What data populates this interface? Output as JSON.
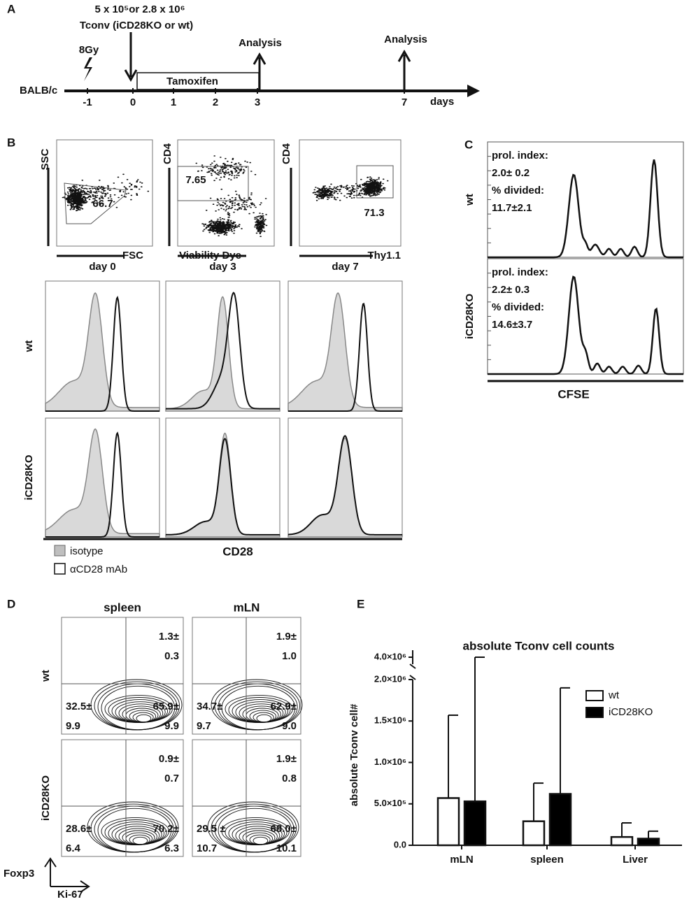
{
  "panel_a": {
    "label": "A",
    "dose": "5 x 10⁵or 2.8 x 10⁶",
    "cells": "Tconv (iCD28KO or wt)",
    "irradiation": "8Gy",
    "treatment": "Tamoxifen",
    "analysis": [
      "Analysis",
      "Analysis"
    ],
    "strain": "BALB/c",
    "timepoints": [
      "-1",
      "0",
      "1",
      "2",
      "3",
      "7"
    ],
    "unit": "days"
  },
  "panel_b": {
    "label": "B",
    "dot_plots": [
      {
        "y_axis": "SSC",
        "x_axis": "FSC",
        "gate": "66.7"
      },
      {
        "y_axis": "CD4",
        "x_axis": "Viability Dye",
        "gate": "7.65"
      },
      {
        "y_axis": "CD4",
        "x_axis": "Thy1.1",
        "gate": "71.3"
      }
    ],
    "days": [
      "day 0",
      "day 3",
      "day 7"
    ],
    "rows": [
      "wt",
      "iCD28KO"
    ],
    "x_axis": "CD28",
    "legend": [
      "isotype",
      "αCD28 mAb"
    ]
  },
  "panel_c": {
    "label": "C",
    "rows": [
      {
        "name": "wt",
        "lines": [
          "prol. index:",
          "2.0± 0.2",
          "% divided:",
          "11.7±2.1"
        ]
      },
      {
        "name": "iCD28KO",
        "lines": [
          "prol. index:",
          "2.2± 0.3",
          "% divided:",
          "14.6±3.7"
        ]
      }
    ],
    "x_axis": "CFSE"
  },
  "panel_d": {
    "label": "D",
    "columns": [
      "spleen",
      "mLN"
    ],
    "rows": [
      "wt",
      "iCD28KO"
    ],
    "quadrants": [
      [
        {
          "tr": [
            "1.3±",
            "0.3"
          ],
          "bl": [
            "32.5±",
            "9.9"
          ],
          "br": [
            "65.9±",
            "9.9"
          ]
        },
        {
          "tr": [
            "1.9±",
            "1.0"
          ],
          "bl": [
            "34.7±",
            "9.7"
          ],
          "br": [
            "62.9±",
            "9.0"
          ]
        }
      ],
      [
        {
          "tr": [
            "0.9±",
            "0.7"
          ],
          "bl": [
            "28.6±",
            "6.4"
          ],
          "br": [
            "70.2±",
            "6.3"
          ]
        },
        {
          "tr": [
            "1.9±",
            "0.8"
          ],
          "bl": [
            "29.5 ±",
            "10.7"
          ],
          "br": [
            "68.0±",
            "10.1"
          ]
        }
      ]
    ],
    "y_axis": "Foxp3",
    "x_axis": "Ki-67"
  },
  "chart_data": {
    "type": "bar",
    "panel_label": "E",
    "title": "absolute Tconv cell counts",
    "ylabel": "absolute Tconv cell#",
    "categories": [
      "mLN",
      "spleen",
      "Liver"
    ],
    "series": [
      {
        "name": "wt",
        "color": "#ffffff",
        "values": [
          570000,
          290000,
          100000
        ],
        "errors": [
          1000000,
          460000,
          170000
        ]
      },
      {
        "name": "iCD28KO",
        "color": "#000000",
        "values": [
          530000,
          620000,
          80000
        ],
        "errors": [
          3470000,
          1280000,
          90000
        ]
      }
    ],
    "ylim": [
      0,
      2000000
    ],
    "yticks": [
      {
        "value": 0,
        "label": "0.0"
      },
      {
        "value": 500000,
        "label": "5.0×10⁵"
      },
      {
        "value": 1000000,
        "label": "1.0×10⁶"
      },
      {
        "value": 1500000,
        "label": "1.5×10⁶"
      },
      {
        "value": 2000000,
        "label": "2.0×10⁶"
      }
    ],
    "ylim_upper": [
      3800000,
      4200000
    ],
    "yticks_upper": [
      {
        "value": 4000000,
        "label": "4.0×10⁶"
      }
    ],
    "legend": "top-right"
  }
}
